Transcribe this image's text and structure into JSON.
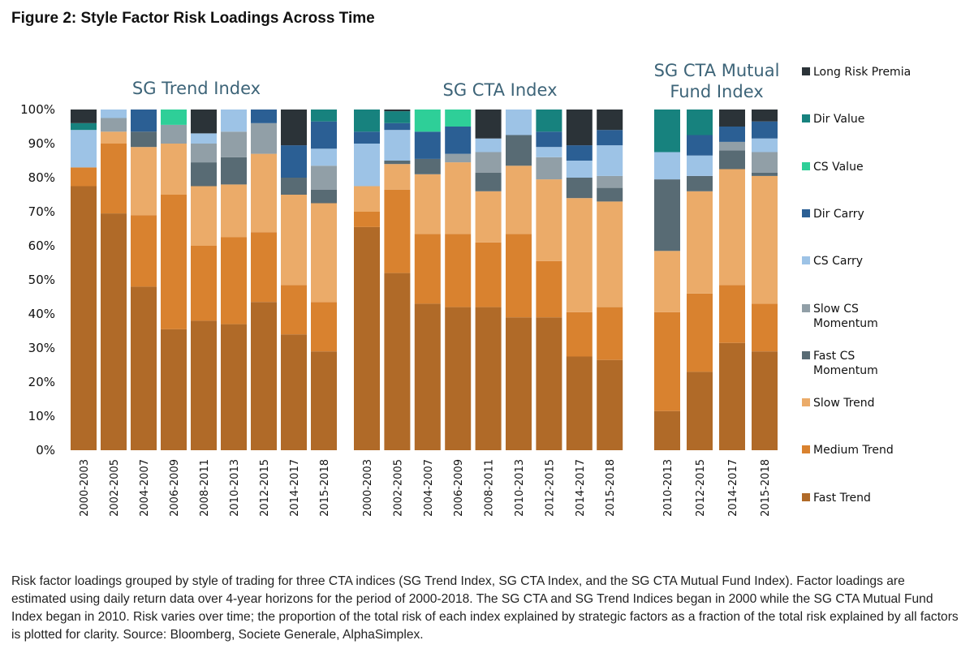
{
  "figure_title": "Figure 2: Style Factor Risk Loadings Across Time",
  "caption": "Risk factor loadings grouped by style of trading for three CTA indices (SG Trend Index, SG CTA Index, and the SG CTA Mutual Fund Index). Factor loadings are estimated using daily return data over 4-year horizons for the period of 2000-2018. The SG CTA and SG Trend Indices began in 2000 while the SG CTA Mutual Fund Index began in 2010. Risk varies over time; the proportion of the total risk of each index explained by strategic factors as a fraction of the total risk explained by all factors is plotted for clarity. Source: Bloomberg, Societe Generale, AlphaSimplex.",
  "chart_data": {
    "type": "bar",
    "stacked": true,
    "ylim": [
      0,
      100
    ],
    "yticks": [
      "0%",
      "10%",
      "20%",
      "30%",
      "40%",
      "50%",
      "60%",
      "70%",
      "80%",
      "90%",
      "100%"
    ],
    "legend_position": "right",
    "factors": [
      {
        "name": "Fast Trend",
        "color": "#b06a28"
      },
      {
        "name": "Medium Trend",
        "color": "#d9822f"
      },
      {
        "name": "Slow Trend",
        "color": "#ebab69"
      },
      {
        "name": "Fast CS Momentum",
        "color": "#586b74"
      },
      {
        "name": "Slow CS Momentum",
        "color": "#919fa7"
      },
      {
        "name": "CS Carry",
        "color": "#9dc3e6"
      },
      {
        "name": "Dir Carry",
        "color": "#2b5f94"
      },
      {
        "name": "CS Value",
        "color": "#2ecf98"
      },
      {
        "name": "Dir Value",
        "color": "#17827e"
      },
      {
        "name": "Long Risk Premia",
        "color": "#2b3338"
      }
    ],
    "legend_items": [
      {
        "label": "Long Risk Premia",
        "factor": 9
      },
      {
        "label": "Dir Value",
        "factor": 8
      },
      {
        "label": "CS Value",
        "factor": 7
      },
      {
        "label": "Dir Carry",
        "factor": 6
      },
      {
        "label": "CS Carry",
        "factor": 5
      },
      {
        "label": "Slow CS\nMomentum",
        "factor": 4
      },
      {
        "label": "Fast CS\nMomentum",
        "factor": 3
      },
      {
        "label": "Slow Trend",
        "factor": 2
      },
      {
        "label": "Medium Trend",
        "factor": 1
      },
      {
        "label": "Fast Trend",
        "factor": 0
      }
    ],
    "panels": [
      {
        "title": "SG Trend Index",
        "categories": [
          "2000-2003",
          "2002-2005",
          "2004-2007",
          "2006-2009",
          "2008-2011",
          "2010-2013",
          "2012-2015",
          "2014-2017",
          "2015-2018"
        ],
        "values": [
          [
            77.5,
            5.5,
            0,
            0,
            0,
            11,
            0,
            0,
            2,
            4
          ],
          [
            69.5,
            20.5,
            3.5,
            0,
            4,
            2.5,
            0,
            0,
            0,
            0
          ],
          [
            48,
            21,
            20,
            4.5,
            0,
            0,
            6.5,
            0,
            0,
            0
          ],
          [
            35.5,
            39.5,
            15,
            0,
            5.5,
            0,
            0,
            4.5,
            0,
            0
          ],
          [
            38,
            22,
            17.5,
            7,
            5.5,
            3,
            0,
            0,
            0,
            7
          ],
          [
            37,
            25.5,
            15.5,
            8,
            7.5,
            6.5,
            0,
            0,
            0,
            0
          ],
          [
            43.5,
            20.5,
            23,
            0,
            9,
            0,
            4,
            0,
            0,
            0
          ],
          [
            34,
            14.5,
            26.5,
            5,
            0,
            0,
            9.5,
            0,
            0,
            10.5
          ],
          [
            29,
            14.5,
            29,
            4,
            7,
            5,
            8,
            0,
            3.5,
            0
          ]
        ]
      },
      {
        "title": "SG CTA Index",
        "categories": [
          "2000-2003",
          "2002-2005",
          "2004-2007",
          "2006-2009",
          "2008-2011",
          "2010-2013",
          "2012-2015",
          "2014-2017",
          "2015-2018"
        ],
        "values": [
          [
            65.5,
            4.5,
            7.5,
            0,
            0,
            12.5,
            3.5,
            0,
            6.5,
            0
          ],
          [
            52,
            24.5,
            7.5,
            1,
            0,
            9,
            2,
            0,
            3.5,
            0.5
          ],
          [
            43,
            20.5,
            17.5,
            4.5,
            0,
            0,
            8,
            6.5,
            0,
            0
          ],
          [
            42,
            21.5,
            21,
            0,
            2.5,
            0,
            8,
            5,
            0,
            0
          ],
          [
            42,
            19,
            15,
            5.5,
            6,
            4,
            0,
            0,
            0,
            8.5
          ],
          [
            39,
            24.5,
            20,
            9,
            0,
            7.5,
            0,
            0,
            0,
            0
          ],
          [
            39,
            16.5,
            24,
            0,
            6.5,
            3,
            4.5,
            0,
            6.5,
            0
          ],
          [
            27.5,
            13,
            33.5,
            6,
            0,
            5,
            4.5,
            0,
            0,
            10.5
          ],
          [
            26.5,
            15.5,
            31,
            4,
            3.5,
            9,
            4.5,
            0,
            0,
            6
          ]
        ]
      },
      {
        "title": "SG CTA Mutual\nFund Index",
        "categories": [
          "2010-2013",
          "2012-2015",
          "2014-2017",
          "2015-2018"
        ],
        "values": [
          [
            11.5,
            29,
            18,
            21,
            0,
            8,
            0,
            0,
            12.5,
            0
          ],
          [
            23,
            23,
            30,
            4.5,
            0,
            6,
            6,
            0,
            7.5,
            0
          ],
          [
            31.5,
            17,
            34,
            5.5,
            2.5,
            0,
            4.5,
            0,
            0,
            5
          ],
          [
            29,
            14,
            37.5,
            1,
            6,
            4,
            5,
            0,
            0,
            3.5
          ]
        ]
      }
    ]
  }
}
